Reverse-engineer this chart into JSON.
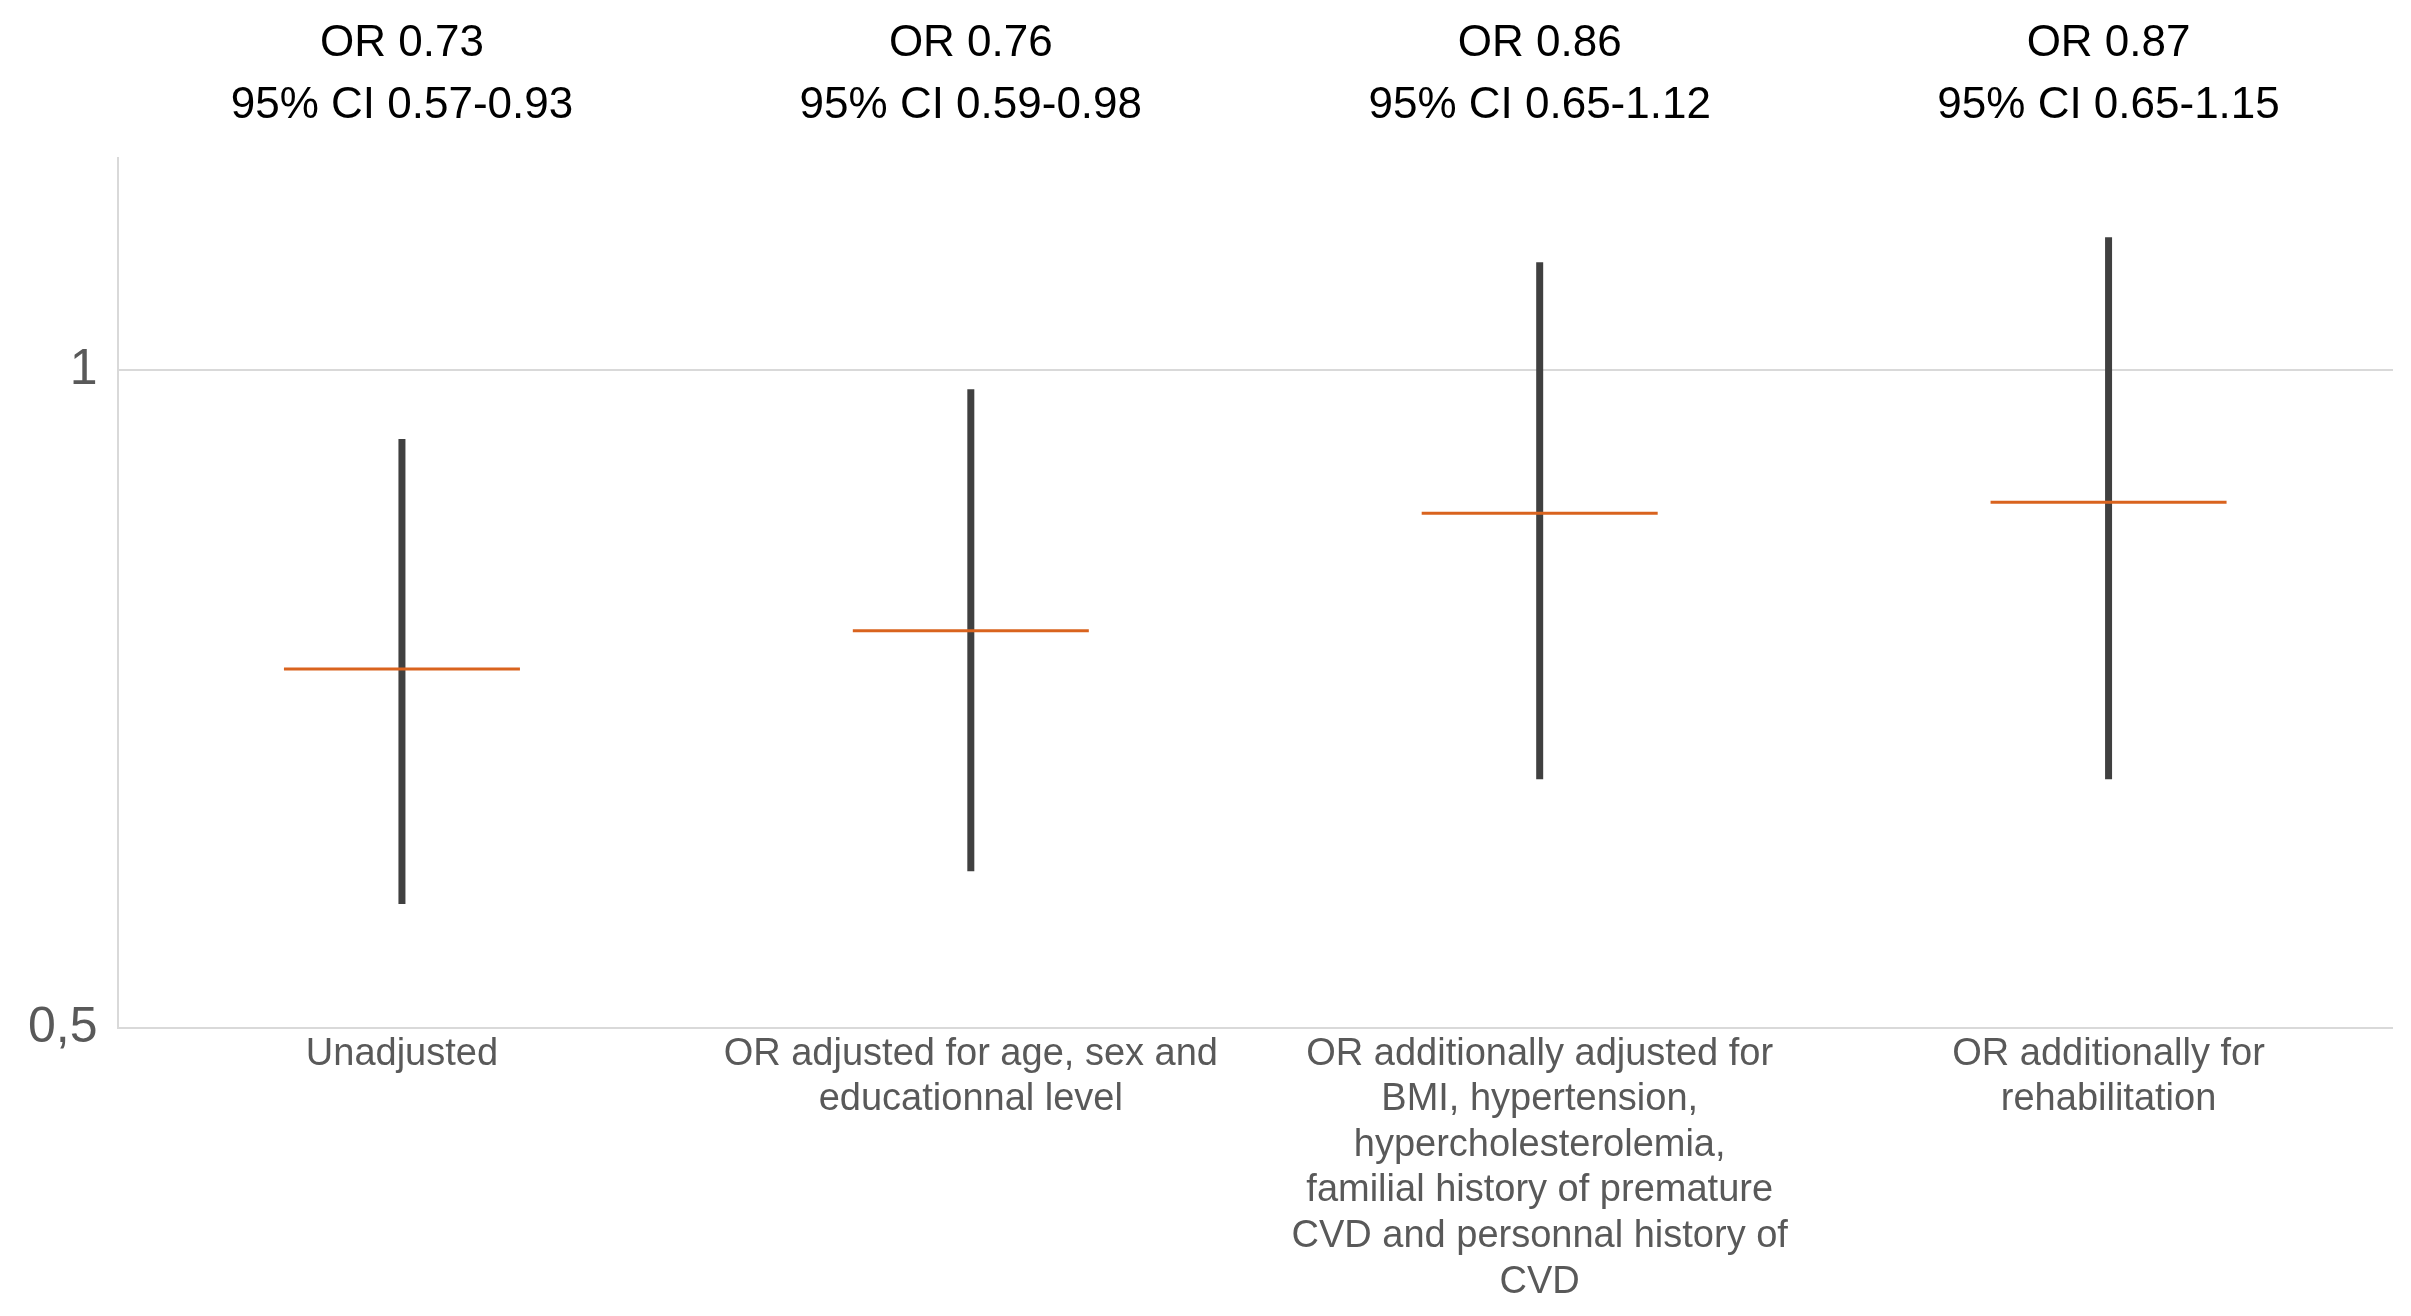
{
  "chart_data": {
    "type": "box",
    "categories": [
      "Unadjusted",
      "OR adjusted for age, sex and educationnal level",
      "OR additionally adjusted for BMI, hypertension, hypercholesterolemia, familial history of premature CVD and personnal history of CVD",
      "OR additionally for rehabilitation"
    ],
    "boxes": [
      {
        "low": 0.57,
        "q1": 0.73,
        "median": 0.73,
        "q3": 0.73,
        "high": 0.93
      },
      {
        "low": 0.59,
        "q1": 0.76,
        "median": 0.76,
        "q3": 0.76,
        "high": 0.98
      },
      {
        "low": 0.65,
        "q1": 0.86,
        "median": 0.86,
        "q3": 0.86,
        "high": 1.12
      },
      {
        "low": 0.65,
        "q1": 0.87,
        "median": 0.87,
        "q3": 0.87,
        "high": 1.15
      }
    ],
    "color": "#d9631e",
    "log": "y",
    "grid": "y",
    "ylim": [
      0.5,
      1.25
    ],
    "yticks": [
      {
        "value": 0.5,
        "label": "0,5"
      },
      1
    ],
    "annotations": [
      "OR 0.73\n95% CI 0.57-0.93",
      "OR 0.76\n95% CI 0.59-0.98",
      "OR 0.86\n95% CI 0.65-1.12",
      "OR 0.87\n95% CI 0.65-1.15"
    ]
  }
}
